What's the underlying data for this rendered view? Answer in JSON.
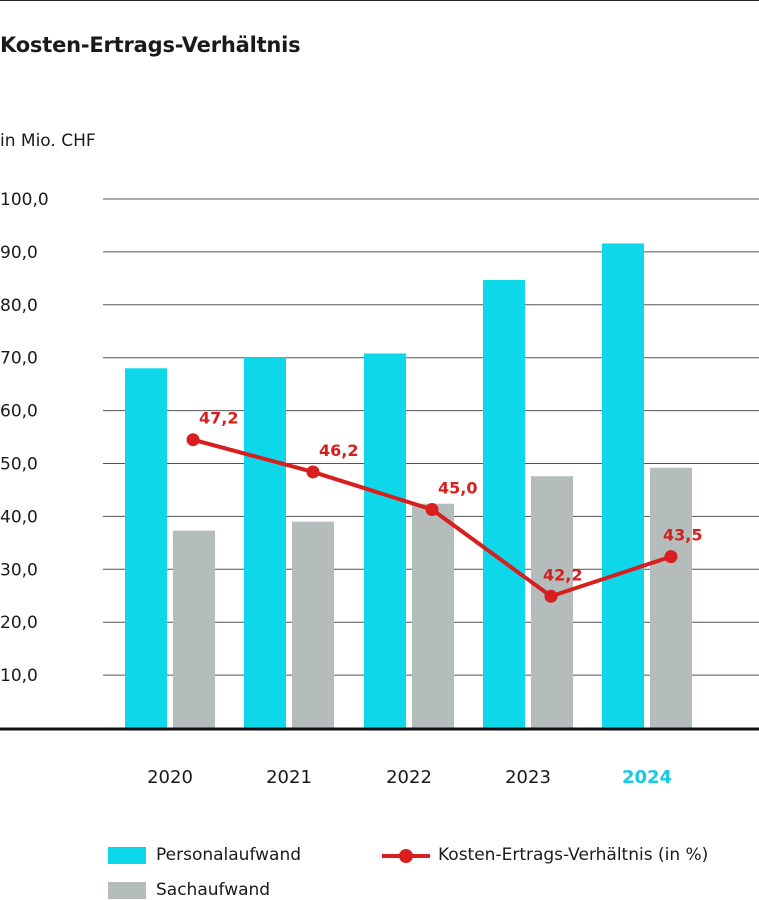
{
  "colors": {
    "personal": "#0fd7ea",
    "sach": "#b4bcbc",
    "ratio": "#d81e1e",
    "grid": "#555555",
    "highlight_year": "#19c8e3"
  },
  "chart_data": {
    "type": "bar",
    "title": "Kosten-Ertrags-Verhältnis",
    "ylabel": "in Mio. CHF",
    "ylim": [
      0,
      100
    ],
    "yticks": [
      "10,0",
      "20,0",
      "30,0",
      "40,0",
      "50,0",
      "60,0",
      "70,0",
      "80,0",
      "90,0",
      "100,0"
    ],
    "ytick_values": [
      10,
      20,
      30,
      40,
      50,
      60,
      70,
      80,
      90,
      100
    ],
    "categories": [
      "2020",
      "2021",
      "2022",
      "2023",
      "2024"
    ],
    "highlight_category": "2024",
    "grid": true,
    "legend_position": "bottom",
    "series": [
      {
        "name": "Personalaufwand",
        "kind": "bar",
        "values": [
          68.0,
          70.0,
          70.8,
          84.7,
          91.6
        ]
      },
      {
        "name": "Sachaufwand",
        "kind": "bar",
        "values": [
          37.3,
          39.0,
          42.4,
          47.6,
          49.2
        ]
      },
      {
        "name": "Kosten-Ertrags-Verhältnis (in %)",
        "kind": "line",
        "values": [
          47.2,
          46.2,
          45.0,
          42.2,
          43.5
        ],
        "labels": [
          "47,2",
          "46,2",
          "45,0",
          "42,2",
          "43,5"
        ],
        "plot_values": [
          54.5,
          48.4,
          41.3,
          24.9,
          32.4
        ]
      }
    ]
  }
}
